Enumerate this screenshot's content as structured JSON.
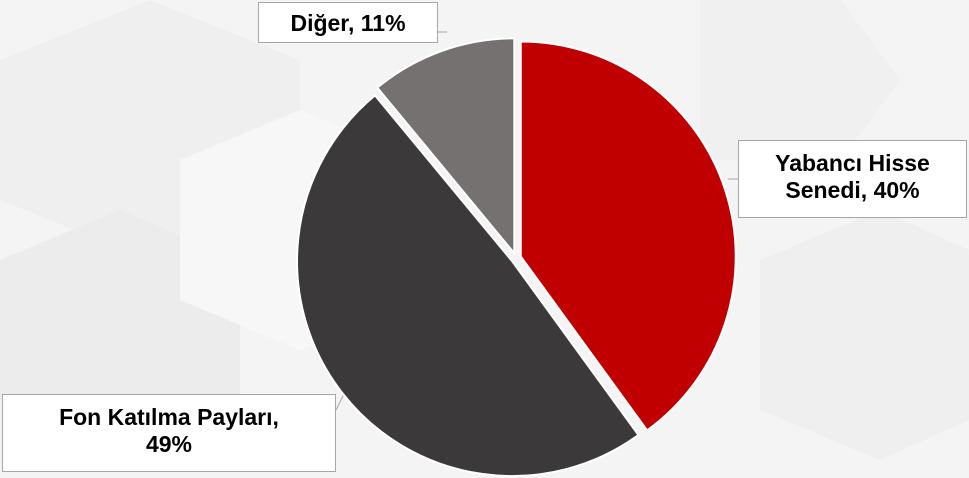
{
  "chart_data": {
    "type": "pie",
    "slices": [
      {
        "label": "Yabancı Hisse Senedi",
        "value": 40,
        "color": "#c00000",
        "label_lines": [
          "Yabancı Hisse",
          "Senedi, 40%"
        ]
      },
      {
        "label": "Fon Katılma Payları",
        "value": 49,
        "color": "#3b393a",
        "label_lines": [
          "Fon Katılma Payları,",
          "49%"
        ]
      },
      {
        "label": "Diğer",
        "value": 11,
        "color": "#767171",
        "label_lines": [
          "Diğer, 11%"
        ]
      }
    ],
    "start_angle": "12 o'clock",
    "direction": "clockwise",
    "exploded": true
  }
}
